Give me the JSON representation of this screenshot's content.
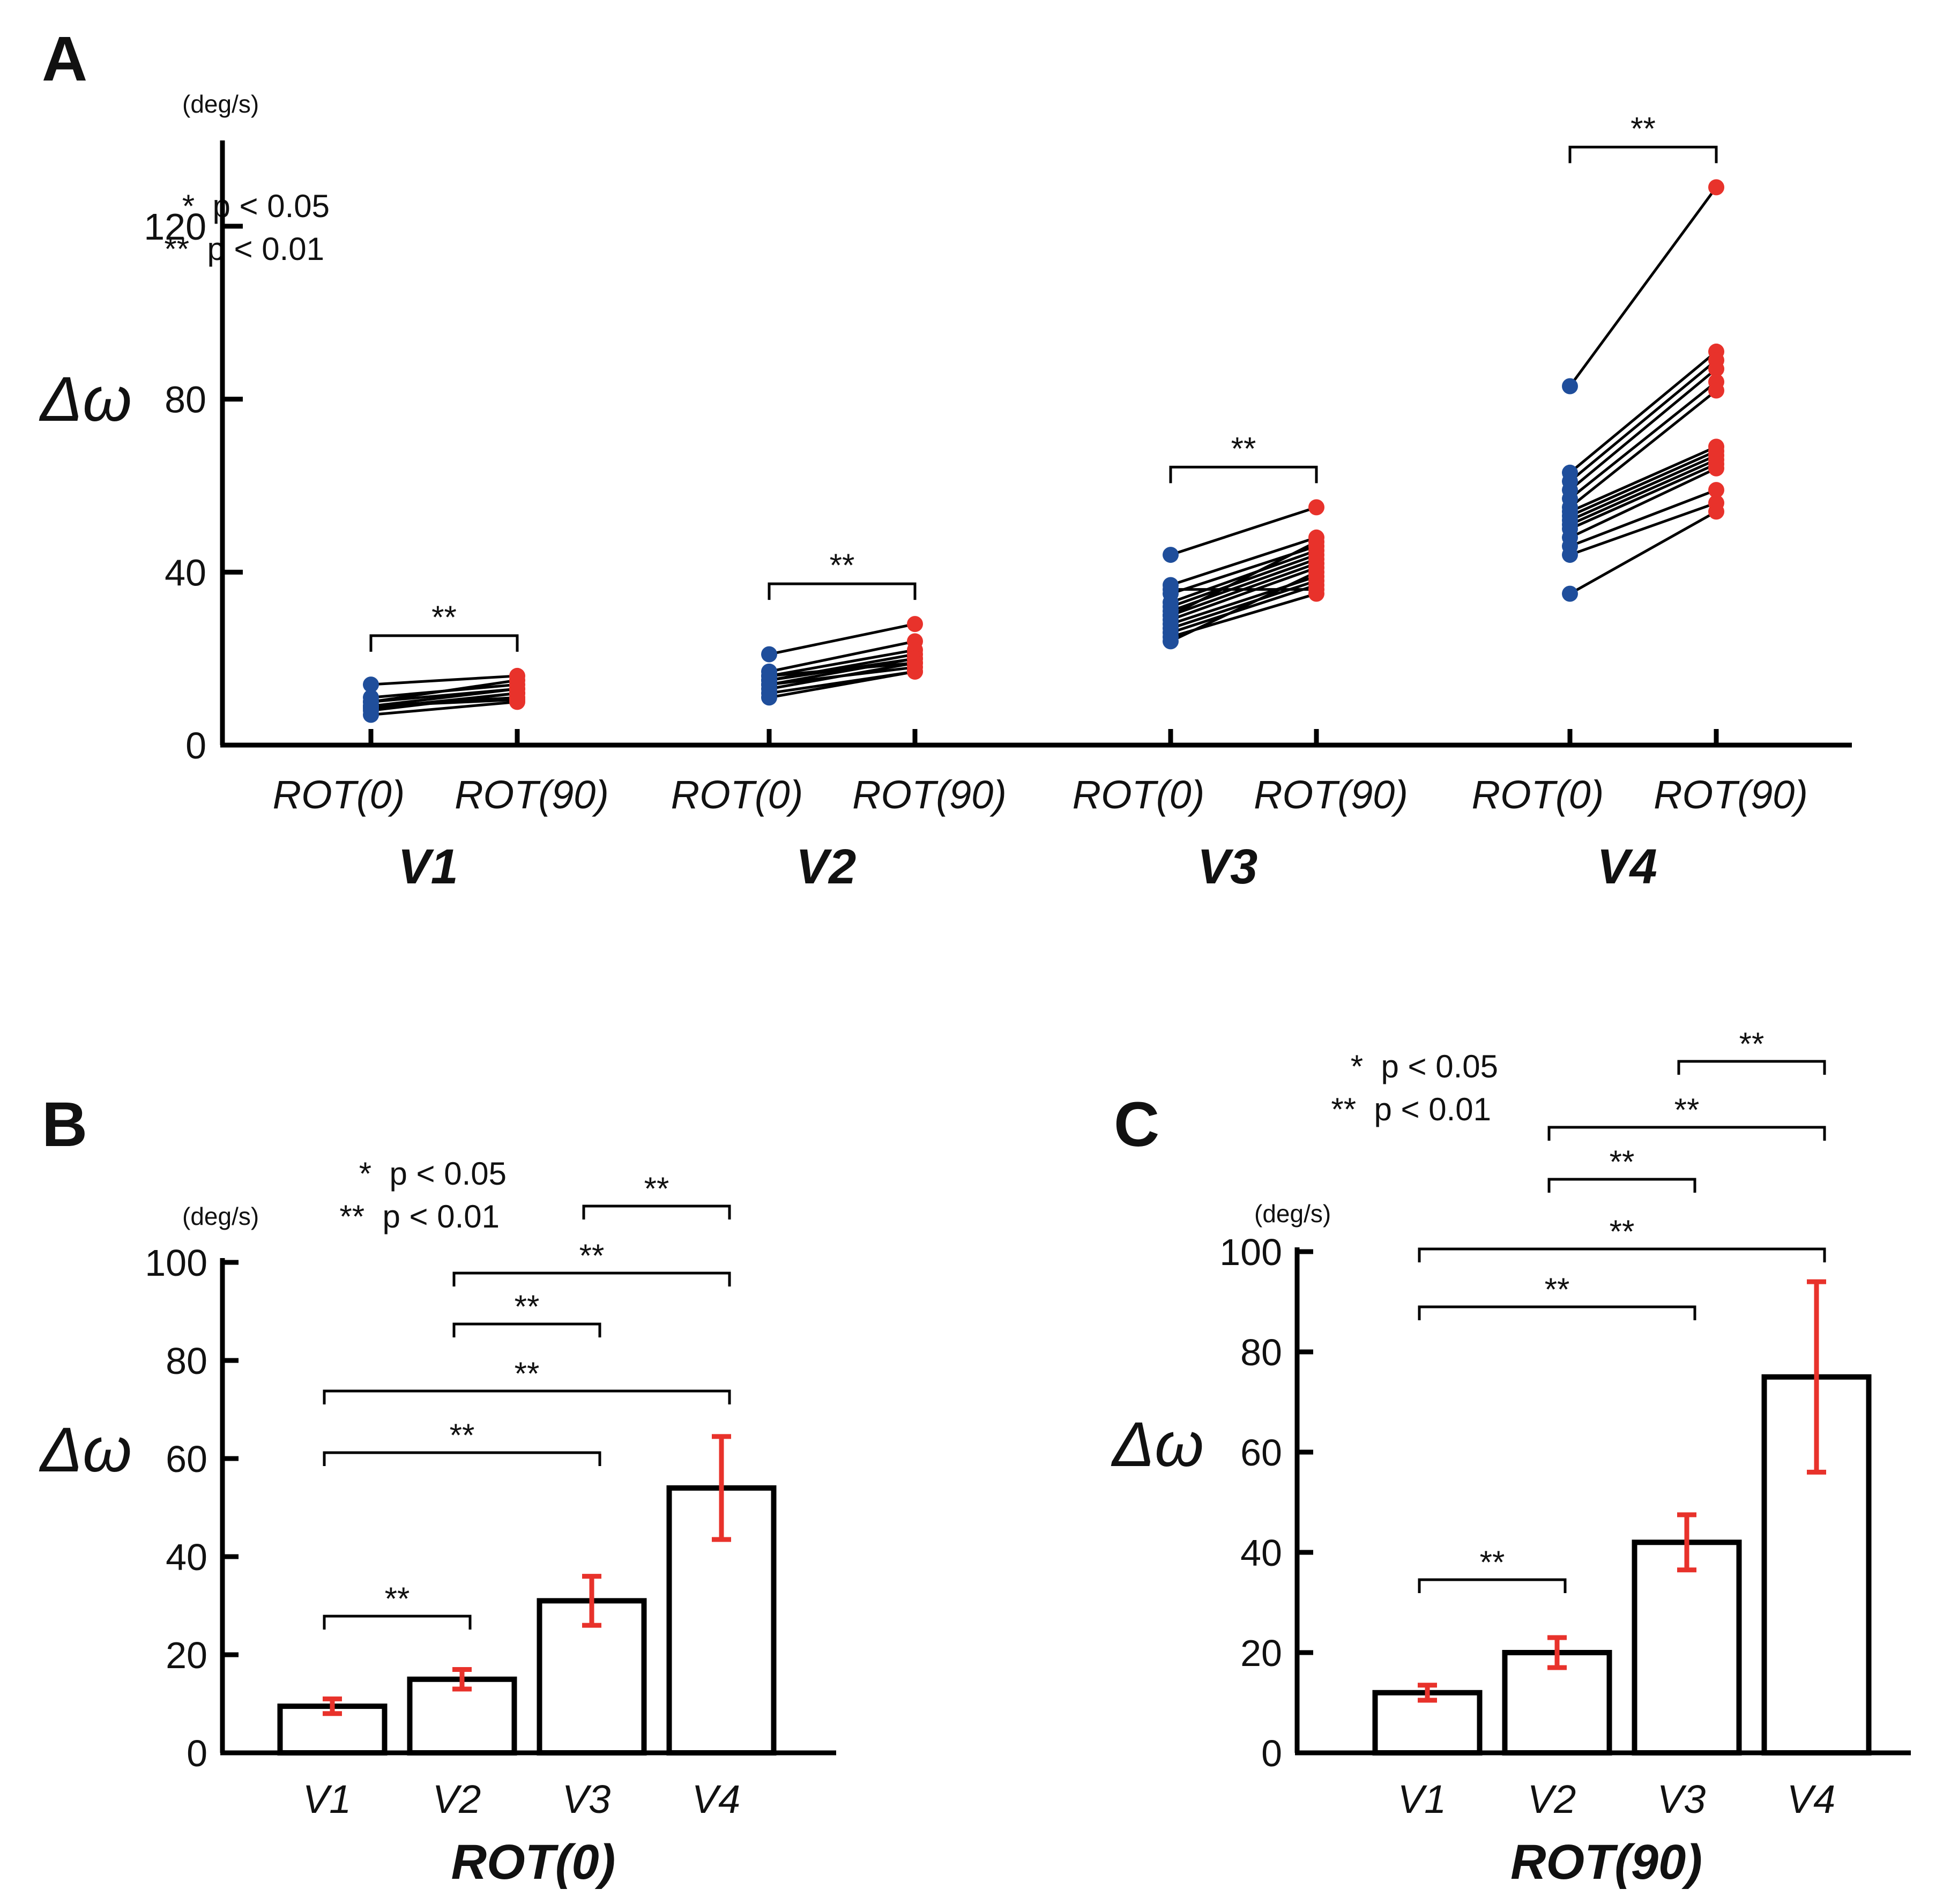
{
  "colors": {
    "rot0": "#1f4e9b",
    "rot90": "#e8322b",
    "error_bar": "#e8322b"
  },
  "chart_data": [
    {
      "panel": "A",
      "type": "scatter",
      "title": "",
      "ylabel": "Δω",
      "unit": "(deg/s)",
      "ylim": [
        0,
        140
      ],
      "yticks": [
        0,
        40,
        80,
        120
      ],
      "legend": [
        "*  p < 0.05",
        "**  p < 0.01"
      ],
      "groups": [
        {
          "region": "V1",
          "conditions": [
            "ROT(0)",
            "ROT(90)"
          ],
          "sig": "**",
          "pairs": [
            [
              14,
              16
            ],
            [
              10,
              15
            ],
            [
              9,
              13
            ],
            [
              8.5,
              12
            ],
            [
              9,
              11
            ],
            [
              8,
              12
            ],
            [
              7,
              10
            ],
            [
              10,
              13
            ],
            [
              11,
              14
            ],
            [
              9,
              10.5
            ]
          ]
        },
        {
          "region": "V2",
          "conditions": [
            "ROT(0)",
            "ROT(90)"
          ],
          "sig": "**",
          "pairs": [
            [
              21,
              28
            ],
            [
              17,
              24
            ],
            [
              16,
              22
            ],
            [
              15,
              21
            ],
            [
              15,
              20
            ],
            [
              14,
              20
            ],
            [
              14,
              18
            ],
            [
              13,
              19
            ],
            [
              12,
              17
            ],
            [
              11,
              17
            ],
            [
              16,
              19
            ]
          ]
        },
        {
          "region": "V3",
          "conditions": [
            "ROT(0)",
            "ROT(90)"
          ],
          "sig": "**",
          "pairs": [
            [
              44,
              55
            ],
            [
              37,
              48
            ],
            [
              35,
              46
            ],
            [
              33,
              45
            ],
            [
              32,
              44
            ],
            [
              31,
              43
            ],
            [
              30,
              42
            ],
            [
              29,
              41
            ],
            [
              28,
              39
            ],
            [
              27,
              38
            ],
            [
              26,
              37
            ],
            [
              25,
              35
            ],
            [
              24,
              40
            ],
            [
              36,
              36
            ],
            [
              30,
              47
            ]
          ]
        },
        {
          "region": "V4",
          "conditions": [
            "ROT(0)",
            "ROT(90)"
          ],
          "sig": "**",
          "pairs": [
            [
              83,
              129
            ],
            [
              63,
              91
            ],
            [
              61,
              89
            ],
            [
              59,
              87
            ],
            [
              57,
              84
            ],
            [
              55,
              82
            ],
            [
              54,
              69
            ],
            [
              53,
              68
            ],
            [
              52,
              67
            ],
            [
              51,
              66
            ],
            [
              50,
              65
            ],
            [
              48,
              64
            ],
            [
              46,
              59
            ],
            [
              44,
              56
            ],
            [
              35,
              54
            ]
          ]
        }
      ]
    },
    {
      "panel": "B",
      "type": "bar",
      "ylabel": "Δω",
      "unit": "(deg/s)",
      "xlabel": "ROT(0)",
      "ylim": [
        0,
        100
      ],
      "yticks": [
        0,
        20,
        40,
        60,
        80,
        100
      ],
      "categories": [
        "V1",
        "V2",
        "V3",
        "V4"
      ],
      "values": [
        9.5,
        15,
        31,
        54
      ],
      "errors": [
        1.5,
        2,
        5,
        10.5
      ],
      "legend": [
        "*  p < 0.05",
        "**  p < 0.01"
      ],
      "comparisons": [
        {
          "from": "V1",
          "to": "V2",
          "label": "**"
        },
        {
          "from": "V1",
          "to": "V3",
          "label": "**"
        },
        {
          "from": "V1",
          "to": "V4",
          "label": "**"
        },
        {
          "from": "V2",
          "to": "V3",
          "label": "**"
        },
        {
          "from": "V2",
          "to": "V4",
          "label": "**"
        },
        {
          "from": "V3",
          "to": "V4",
          "label": "**"
        }
      ]
    },
    {
      "panel": "C",
      "type": "bar",
      "ylabel": "Δω",
      "unit": "(deg/s)",
      "xlabel": "ROT(90)",
      "ylim": [
        0,
        100
      ],
      "yticks": [
        0,
        20,
        40,
        60,
        80,
        100
      ],
      "categories": [
        "V1",
        "V2",
        "V3",
        "V4"
      ],
      "values": [
        12,
        20,
        42,
        75
      ],
      "errors": [
        1.5,
        3,
        5.5,
        19
      ],
      "legend": [
        "*  p < 0.05",
        "**  p < 0.01"
      ],
      "comparisons": [
        {
          "from": "V1",
          "to": "V2",
          "label": "**"
        },
        {
          "from": "V1",
          "to": "V3",
          "label": "**"
        },
        {
          "from": "V1",
          "to": "V4",
          "label": "**"
        },
        {
          "from": "V2",
          "to": "V3",
          "label": "**"
        },
        {
          "from": "V2",
          "to": "V4",
          "label": "**"
        },
        {
          "from": "V3",
          "to": "V4",
          "label": "**"
        }
      ]
    }
  ]
}
